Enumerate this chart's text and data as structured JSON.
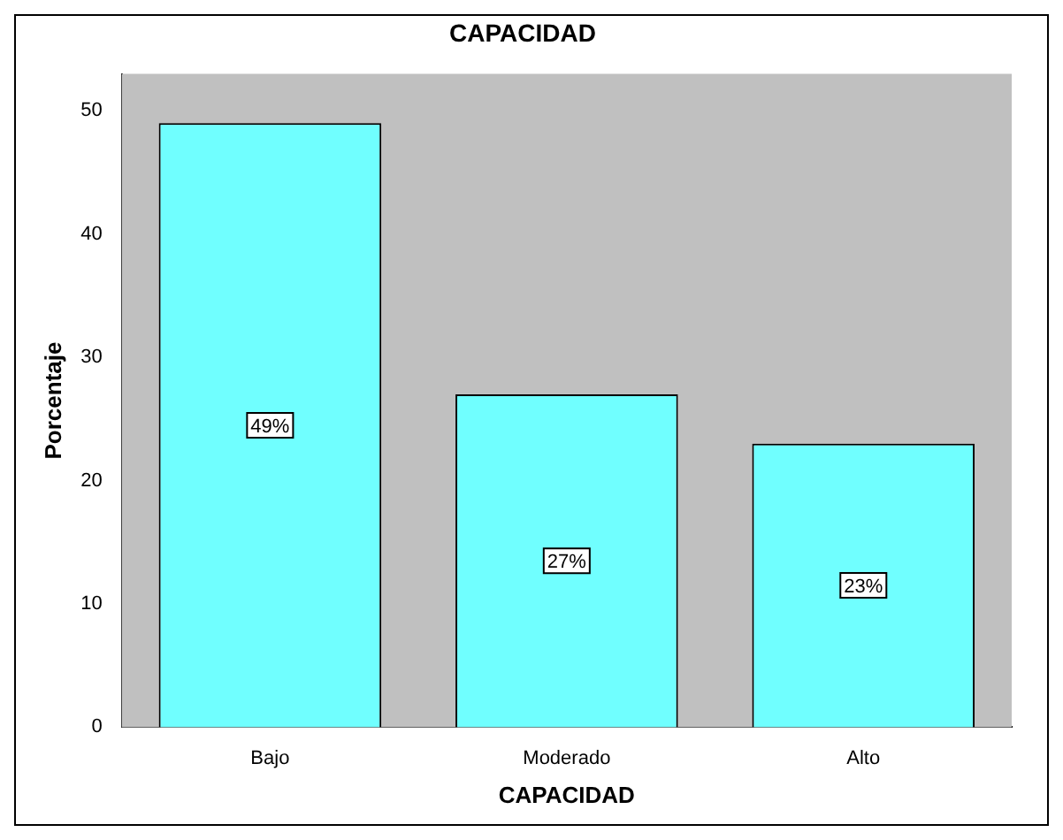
{
  "chart_data": {
    "type": "bar",
    "title": "CAPACIDAD",
    "xlabel": "CAPACIDAD",
    "ylabel": "Porcentaje",
    "categories": [
      "Bajo",
      "Moderado",
      "Alto"
    ],
    "values": [
      49,
      27,
      23
    ],
    "color": "#70ffff",
    "value_labels": [
      "49%",
      "27%",
      "23%"
    ],
    "ylim": [
      0,
      53
    ],
    "yticks": [
      0,
      10,
      20,
      30,
      40,
      50
    ],
    "grid": false,
    "legend": false
  }
}
